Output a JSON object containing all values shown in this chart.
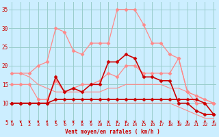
{
  "background_color": "#cceeff",
  "grid_color": "#99cccc",
  "x_label": "Vent moyen/en rafales ( km/h )",
  "x_ticks": [
    0,
    1,
    2,
    3,
    4,
    5,
    6,
    7,
    8,
    9,
    10,
    11,
    12,
    13,
    14,
    15,
    16,
    17,
    18,
    19,
    20,
    21,
    22,
    23
  ],
  "ylim": [
    5,
    37
  ],
  "yticks": [
    5,
    10,
    15,
    20,
    25,
    30,
    35
  ],
  "series": [
    {
      "color": "#ff8888",
      "lw": 0.9,
      "marker": "D",
      "ms": 2.5,
      "data": [
        18,
        18,
        18,
        20,
        21,
        30,
        29,
        24,
        23,
        26,
        26,
        26,
        35,
        35,
        35,
        31,
        26,
        26,
        23,
        22,
        13,
        12,
        11,
        10
      ]
    },
    {
      "color": "#ff8888",
      "lw": 0.9,
      "marker": "D",
      "ms": 2.5,
      "data": [
        15,
        15,
        15,
        11,
        11,
        16,
        13,
        14,
        15,
        15,
        16,
        18,
        17,
        20,
        20,
        18,
        18,
        18,
        18,
        22,
        13,
        10,
        10,
        10
      ]
    },
    {
      "color": "#ff8888",
      "lw": 0.8,
      "marker": null,
      "ms": 0,
      "data": [
        18,
        18,
        17,
        15,
        14,
        13,
        13,
        13,
        13,
        13,
        13,
        14,
        14,
        15,
        15,
        15,
        15,
        15,
        14,
        14,
        13,
        12,
        11,
        10
      ]
    },
    {
      "color": "#ff8888",
      "lw": 0.8,
      "marker": null,
      "ms": 0,
      "data": [
        10,
        10,
        10,
        10,
        10,
        10,
        10,
        10,
        10,
        10,
        10,
        10,
        10,
        10,
        10,
        10,
        10,
        10,
        10,
        9,
        8,
        7,
        6,
        6
      ]
    },
    {
      "color": "#cc0000",
      "lw": 1.2,
      "marker": "D",
      "ms": 2.5,
      "data": [
        10,
        10,
        10,
        10,
        10,
        17,
        13,
        14,
        13,
        15,
        15,
        21,
        21,
        23,
        22,
        17,
        17,
        16,
        16,
        10,
        10,
        8,
        7,
        7
      ]
    },
    {
      "color": "#cc0000",
      "lw": 1.2,
      "marker": "D",
      "ms": 2.5,
      "data": [
        10,
        10,
        10,
        10,
        10,
        11,
        11,
        11,
        11,
        11,
        11,
        11,
        11,
        11,
        11,
        11,
        11,
        11,
        11,
        11,
        11,
        11,
        10,
        7
      ]
    }
  ],
  "arrow_color": "#cc0000",
  "xlabel_fontsize": 5.5,
  "tick_fontsize": 5
}
